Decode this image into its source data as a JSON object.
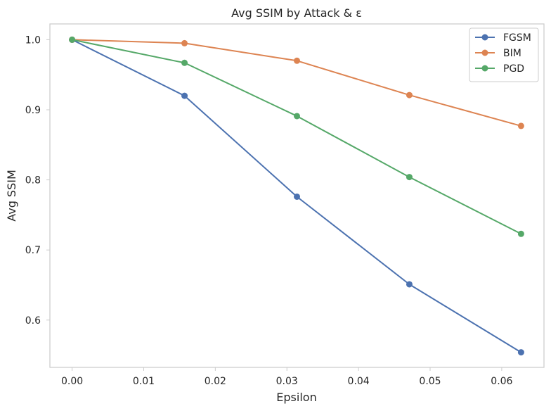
{
  "chart_data": {
    "type": "line",
    "title": "Avg SSIM by Attack & ε",
    "xlabel": "Epsilon",
    "ylabel": "Avg SSIM",
    "x": [
      0.0,
      0.0157,
      0.0314,
      0.0471,
      0.0627
    ],
    "xlim": [
      -0.0031,
      0.0659
    ],
    "ylim": [
      0.5325,
      1.0225
    ],
    "xticks": [
      "0.00",
      "0.01",
      "0.02",
      "0.03",
      "0.04",
      "0.05",
      "0.06"
    ],
    "yticks": [
      "0.6",
      "0.7",
      "0.8",
      "0.9",
      "1.0"
    ],
    "grid": false,
    "legend_position": "top-right",
    "series": [
      {
        "name": "FGSM",
        "color": "#4c72b0",
        "values": [
          1.0,
          0.92,
          0.776,
          0.651,
          0.554
        ]
      },
      {
        "name": "BIM",
        "color": "#dd8452",
        "values": [
          1.0,
          0.995,
          0.97,
          0.921,
          0.877
        ]
      },
      {
        "name": "PGD",
        "color": "#55a868",
        "values": [
          1.0,
          0.967,
          0.891,
          0.804,
          0.723
        ]
      }
    ]
  }
}
